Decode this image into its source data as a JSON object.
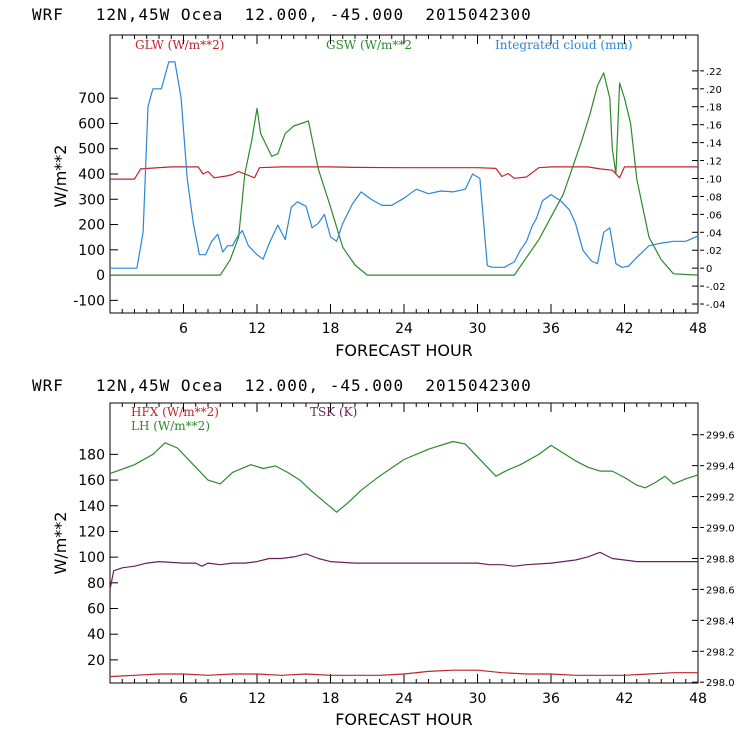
{
  "chart_data": [
    {
      "type": "line",
      "title": "WRF   12N,45W Ocea  12.000, -45.000  2015042300",
      "xlabel": "FORECAST HOUR",
      "ylabel": "W/m**2",
      "xlim": [
        0,
        48
      ],
      "ylim": [
        -150,
        950
      ],
      "x_ticks": [
        "6",
        "12",
        "18",
        "24",
        "30",
        "36",
        "42",
        "48"
      ],
      "y_ticks": [
        "-100",
        "0",
        "100",
        "200",
        "300",
        "400",
        "500",
        "600",
        "700"
      ],
      "right_axis": {
        "ylim": [
          -0.05,
          0.26
        ],
        "ticks": [
          ".22",
          ".20",
          ".18",
          ".16",
          ".14",
          ".12",
          ".10",
          ".08",
          ".06",
          ".04",
          ".02",
          "0",
          "-.02",
          "-.04"
        ]
      },
      "series": [
        {
          "name": "GLW (W/m**2)",
          "color": "#c0242a",
          "axis": "left",
          "x": [
            0,
            2,
            2.5,
            5,
            7.2,
            7.6,
            8,
            8.5,
            9.5,
            10,
            10.5,
            11.8,
            12.2,
            14,
            16,
            18,
            20,
            24,
            28,
            30,
            31.5,
            32,
            32.5,
            33,
            34,
            35,
            36,
            39,
            40,
            41,
            41.6,
            42,
            44,
            48
          ],
          "values": [
            380,
            380,
            420,
            428,
            428,
            400,
            410,
            385,
            392,
            398,
            410,
            385,
            425,
            428,
            428,
            428,
            426,
            425,
            425,
            425,
            422,
            390,
            402,
            383,
            388,
            425,
            428,
            428,
            420,
            415,
            385,
            428,
            428,
            428
          ]
        },
        {
          "name": "GSW (W/m**2",
          "color": "#2c8a2c",
          "axis": "left",
          "x": [
            0,
            9,
            9.8,
            10.5,
            11,
            11.6,
            12,
            12.3,
            12.7,
            13.2,
            13.7,
            14.3,
            15,
            15.6,
            16.2,
            17,
            18,
            19,
            20,
            21,
            22,
            33,
            35,
            37,
            38.5,
            39.2,
            39.8,
            40.3,
            40.8,
            41,
            41.3,
            41.6,
            42,
            42.5,
            43,
            44,
            45,
            46,
            48
          ],
          "values": [
            0,
            0,
            60,
            150,
            400,
            540,
            660,
            560,
            520,
            470,
            480,
            560,
            590,
            600,
            610,
            420,
            270,
            110,
            40,
            0,
            0,
            0,
            140,
            320,
            530,
            640,
            750,
            800,
            700,
            500,
            400,
            760,
            700,
            600,
            380,
            150,
            60,
            5,
            0
          ]
        },
        {
          "name": "Integrated cloud (mm)",
          "color": "#2a86d8",
          "axis": "right",
          "x": [
            0,
            2.2,
            2.7,
            3.1,
            3.5,
            4.2,
            4.8,
            5.3,
            5.8,
            6.3,
            6.8,
            7.3,
            7.8,
            8.3,
            8.8,
            9.2,
            9.6,
            10,
            10.4,
            10.8,
            11.3,
            12,
            12.5,
            13,
            13.7,
            14.3,
            14.8,
            15.3,
            16,
            16.5,
            17,
            17.5,
            18,
            18.5,
            19,
            19.8,
            20.5,
            21.3,
            22.2,
            23,
            24,
            25,
            26,
            27,
            28,
            29,
            29.6,
            30.2,
            30.8,
            31.2,
            31.6,
            32.2,
            33,
            33.5,
            34,
            34.5,
            34.8,
            35.3,
            36,
            36.8,
            37.5,
            38,
            38.6,
            39.3,
            39.8,
            40.3,
            40.8,
            41.3,
            41.8,
            42.3,
            43,
            44,
            45,
            46,
            47,
            48
          ],
          "values": [
            0,
            0,
            0.04,
            0.18,
            0.2,
            0.2,
            0.23,
            0.23,
            0.19,
            0.1,
            0.05,
            0.015,
            0.015,
            0.03,
            0.038,
            0.018,
            0.025,
            0.025,
            0.035,
            0.042,
            0.025,
            0.015,
            0.01,
            0.028,
            0.048,
            0.032,
            0.068,
            0.074,
            0.069,
            0.045,
            0.05,
            0.06,
            0.035,
            0.03,
            0.05,
            0.072,
            0.085,
            0.077,
            0.07,
            0.07,
            0.078,
            0.088,
            0.083,
            0.086,
            0.085,
            0.088,
            0.105,
            0.1,
            0.003,
            0.001,
            0.001,
            0.001,
            0.007,
            0.02,
            0.03,
            0.048,
            0.055,
            0.075,
            0.082,
            0.075,
            0.065,
            0.05,
            0.02,
            0.008,
            0.005,
            0.04,
            0.045,
            0.005,
            0.001,
            0.002,
            0.012,
            0.025,
            0.028,
            0.03,
            0.03,
            0.036
          ]
        }
      ]
    },
    {
      "type": "line",
      "title": "WRF   12N,45W Ocea  12.000, -45.000  2015042300",
      "xlabel": "FORECAST HOUR",
      "ylabel": "W/m**2",
      "xlim": [
        0,
        48
      ],
      "ylim": [
        2,
        220
      ],
      "x_ticks": [
        "6",
        "12",
        "18",
        "24",
        "30",
        "36",
        "42",
        "48"
      ],
      "y_ticks": [
        "20",
        "40",
        "60",
        "80",
        "100",
        "120",
        "140",
        "160",
        "180"
      ],
      "right_axis": {
        "ylim": [
          297.995,
          299.805
        ],
        "ticks": [
          "299.6",
          "299.4",
          "299.2",
          "299.0",
          "298.8",
          "298.6",
          "298.4",
          "298.2",
          "298.0"
        ]
      },
      "series": [
        {
          "name": "HFX (W/m**2)",
          "color": "#c0242a",
          "axis": "left",
          "x": [
            0,
            2,
            4,
            6,
            8,
            10,
            12,
            14,
            16,
            18,
            20,
            22,
            24,
            26,
            28,
            30,
            32,
            34,
            36,
            38,
            40,
            42,
            44,
            46,
            48
          ],
          "values": [
            7,
            8,
            9,
            9,
            8,
            9,
            9,
            8,
            9,
            8,
            8,
            8,
            9,
            11,
            12,
            12,
            10,
            9,
            9,
            8,
            8,
            8,
            9,
            10,
            10
          ]
        },
        {
          "name": "LH  (W/m**2)",
          "color": "#2c8a2c",
          "axis": "left",
          "x": [
            0,
            2,
            3.5,
            4.5,
            5.5,
            6.5,
            8,
            9,
            10,
            11.5,
            12.5,
            13.5,
            14.5,
            15.5,
            16.5,
            17.5,
            18.5,
            19.5,
            20.5,
            22,
            24,
            26,
            28,
            29,
            30,
            31,
            31.5,
            32.5,
            33.5,
            35,
            36,
            37,
            38,
            39,
            40,
            41,
            42,
            43,
            43.7,
            44.5,
            45.3,
            46,
            47,
            48
          ],
          "values": [
            165,
            172,
            180,
            189,
            185,
            175,
            160,
            157,
            166,
            172,
            169,
            171,
            166,
            160,
            151,
            143,
            135,
            143,
            152,
            163,
            176,
            184,
            190,
            188,
            178,
            168,
            163,
            168,
            172,
            180,
            187,
            181,
            175,
            170,
            167,
            167,
            162,
            156,
            154,
            158,
            163,
            157,
            161,
            164
          ]
        },
        {
          "name": "TSK (K)",
          "color": "#6a1f5e",
          "axis": "right",
          "x": [
            0,
            0.3,
            1,
            2,
            3,
            4,
            6,
            7,
            7.5,
            8,
            9,
            10,
            11,
            12,
            13,
            14,
            15,
            16,
            17,
            18,
            20,
            24,
            28,
            30,
            31,
            32,
            33,
            34,
            36,
            38,
            39,
            40,
            40.5,
            41,
            42,
            43,
            44,
            46,
            48
          ],
          "values": [
            298.6,
            298.72,
            298.74,
            298.75,
            298.77,
            298.78,
            298.77,
            298.77,
            298.75,
            298.77,
            298.76,
            298.77,
            298.77,
            298.78,
            298.8,
            298.8,
            298.81,
            298.83,
            298.8,
            298.78,
            298.77,
            298.77,
            298.77,
            298.77,
            298.76,
            298.76,
            298.75,
            298.76,
            298.77,
            298.79,
            298.81,
            298.84,
            298.82,
            298.8,
            298.79,
            298.78,
            298.78,
            298.78,
            298.78
          ]
        }
      ]
    }
  ]
}
